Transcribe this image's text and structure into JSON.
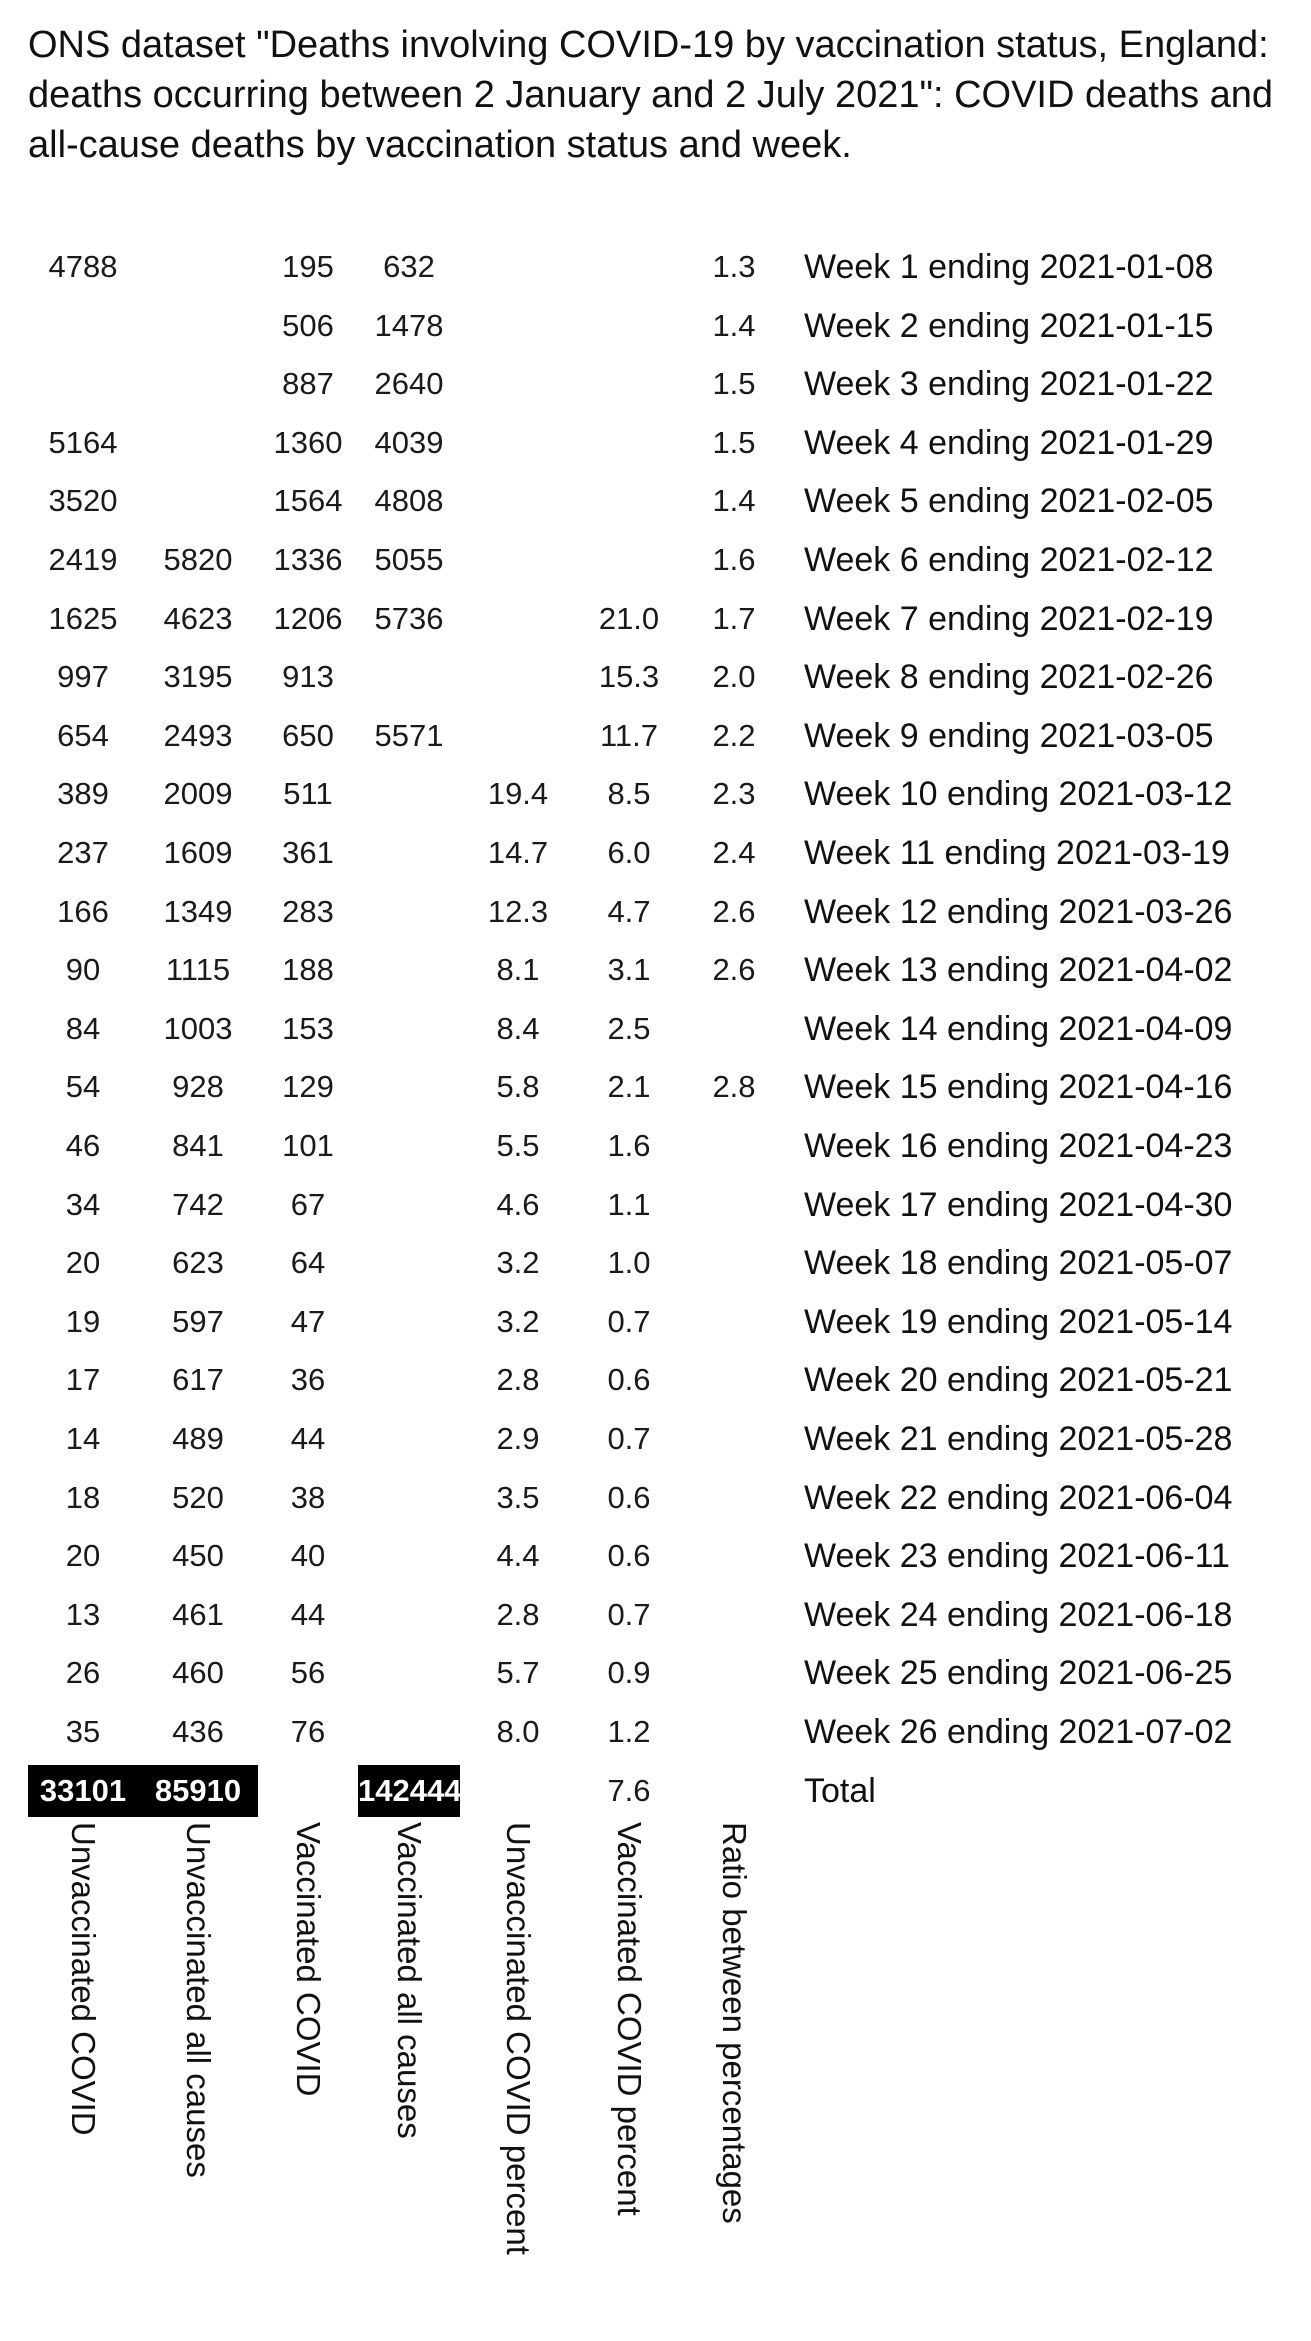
{
  "title": "ONS dataset \"Deaths involving COVID-19 by vaccination status, England: deaths occurring between 2 January and 2 July 2021\": COVID deaths and all-cause deaths by vaccination status and week.",
  "columns": [
    "Unvaccinated COVID",
    "Unvaccinated all causes",
    "Vaccinated COVID",
    "Vaccinated all causes",
    "Unvaccinated COVID percent",
    "Vaccinated COVID percent",
    "Ratio between percentages"
  ],
  "rows": [
    {
      "cells": [
        "4788",
        "",
        "195",
        "632",
        "",
        "",
        "1.3"
      ],
      "week": "Week 1 ending 2021-01-08"
    },
    {
      "cells": [
        "",
        "",
        "506",
        "1478",
        "",
        "",
        "1.4"
      ],
      "week": "Week 2 ending 2021-01-15"
    },
    {
      "cells": [
        "",
        "",
        "887",
        "2640",
        "",
        "",
        "1.5"
      ],
      "week": "Week 3 ending 2021-01-22"
    },
    {
      "cells": [
        "5164",
        "",
        "1360",
        "4039",
        "",
        "",
        "1.5"
      ],
      "week": "Week 4 ending 2021-01-29"
    },
    {
      "cells": [
        "3520",
        "",
        "1564",
        "4808",
        "",
        "",
        "1.4"
      ],
      "week": "Week 5 ending 2021-02-05"
    },
    {
      "cells": [
        "2419",
        "5820",
        "1336",
        "5055",
        "",
        "",
        "1.6"
      ],
      "week": "Week 6 ending 2021-02-12"
    },
    {
      "cells": [
        "1625",
        "4623",
        "1206",
        "5736",
        "",
        "21.0",
        "1.7"
      ],
      "week": "Week 7 ending 2021-02-19"
    },
    {
      "cells": [
        "997",
        "3195",
        "913",
        "",
        "",
        "15.3",
        "2.0"
      ],
      "week": "Week 8 ending 2021-02-26"
    },
    {
      "cells": [
        "654",
        "2493",
        "650",
        "5571",
        "",
        "11.7",
        "2.2"
      ],
      "week": "Week 9 ending 2021-03-05"
    },
    {
      "cells": [
        "389",
        "2009",
        "511",
        "",
        "19.4",
        "8.5",
        "2.3"
      ],
      "week": "Week 10 ending 2021-03-12"
    },
    {
      "cells": [
        "237",
        "1609",
        "361",
        "",
        "14.7",
        "6.0",
        "2.4"
      ],
      "week": "Week 11 ending 2021-03-19"
    },
    {
      "cells": [
        "166",
        "1349",
        "283",
        "",
        "12.3",
        "4.7",
        "2.6"
      ],
      "week": "Week 12 ending 2021-03-26"
    },
    {
      "cells": [
        "90",
        "1115",
        "188",
        "",
        "8.1",
        "3.1",
        "2.6"
      ],
      "week": "Week 13 ending 2021-04-02"
    },
    {
      "cells": [
        "84",
        "1003",
        "153",
        "",
        "8.4",
        "2.5",
        ""
      ],
      "week": "Week 14 ending 2021-04-09"
    },
    {
      "cells": [
        "54",
        "928",
        "129",
        "",
        "5.8",
        "2.1",
        "2.8"
      ],
      "week": "Week 15 ending 2021-04-16"
    },
    {
      "cells": [
        "46",
        "841",
        "101",
        "",
        "5.5",
        "1.6",
        ""
      ],
      "week": "Week 16 ending 2021-04-23"
    },
    {
      "cells": [
        "34",
        "742",
        "67",
        "",
        "4.6",
        "1.1",
        ""
      ],
      "week": "Week 17 ending 2021-04-30"
    },
    {
      "cells": [
        "20",
        "623",
        "64",
        "",
        "3.2",
        "1.0",
        ""
      ],
      "week": "Week 18 ending 2021-05-07"
    },
    {
      "cells": [
        "19",
        "597",
        "47",
        "",
        "3.2",
        "0.7",
        ""
      ],
      "week": "Week 19 ending 2021-05-14"
    },
    {
      "cells": [
        "17",
        "617",
        "36",
        "",
        "2.8",
        "0.6",
        ""
      ],
      "week": "Week 20 ending 2021-05-21"
    },
    {
      "cells": [
        "14",
        "489",
        "44",
        "",
        "2.9",
        "0.7",
        ""
      ],
      "week": "Week 21 ending 2021-05-28"
    },
    {
      "cells": [
        "18",
        "520",
        "38",
        "",
        "3.5",
        "0.6",
        ""
      ],
      "week": "Week 22 ending 2021-06-04"
    },
    {
      "cells": [
        "20",
        "450",
        "40",
        "",
        "4.4",
        "0.6",
        ""
      ],
      "week": "Week 23 ending 2021-06-11"
    },
    {
      "cells": [
        "13",
        "461",
        "44",
        "",
        "2.8",
        "0.7",
        ""
      ],
      "week": "Week 24 ending 2021-06-18"
    },
    {
      "cells": [
        "26",
        "460",
        "56",
        "",
        "5.7",
        "0.9",
        ""
      ],
      "week": "Week 25 ending 2021-06-25"
    },
    {
      "cells": [
        "35",
        "436",
        "76",
        "",
        "8.0",
        "1.2",
        ""
      ],
      "week": "Week 26 ending 2021-07-02"
    }
  ],
  "total": {
    "cells": [
      "33101",
      "85910",
      "",
      "142444",
      "",
      "7.6",
      ""
    ],
    "label": "Total",
    "highlighted_columns": [
      0,
      1,
      3
    ],
    "highlight_bg": "#000000",
    "highlight_fg": "#ffffff"
  }
}
